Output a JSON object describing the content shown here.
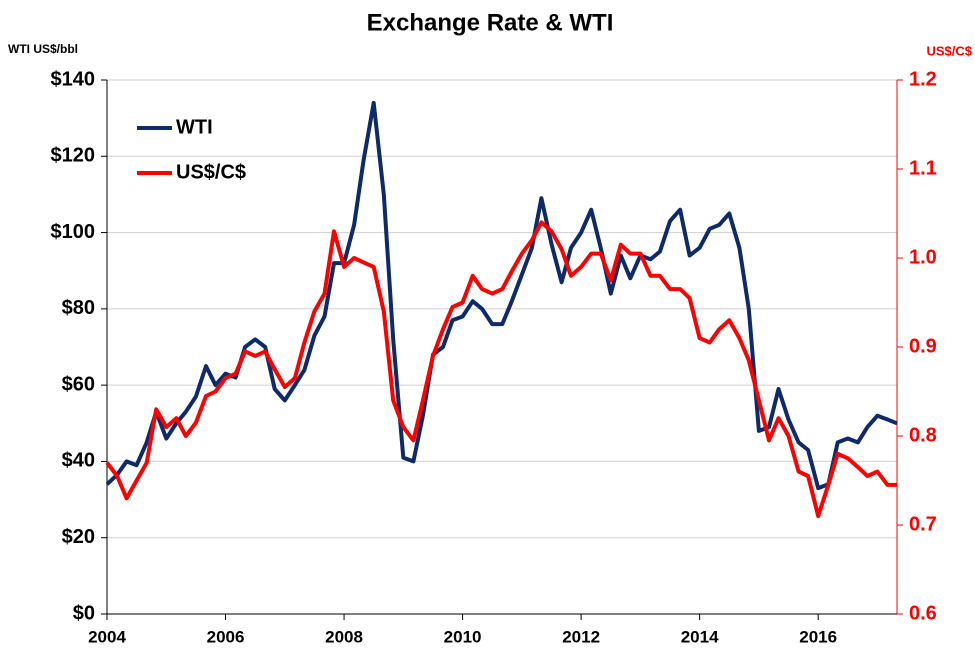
{
  "chart_data": {
    "type": "line",
    "title": "Exchange Rate & WTI",
    "y_label": "WTI US$/bbl",
    "y2_label": "US$/C$",
    "x": [
      2004,
      2004.17,
      2004.33,
      2004.5,
      2004.67,
      2004.83,
      2005,
      2005.17,
      2005.33,
      2005.5,
      2005.67,
      2005.83,
      2006,
      2006.17,
      2006.33,
      2006.5,
      2006.67,
      2006.83,
      2007,
      2007.17,
      2007.33,
      2007.5,
      2007.67,
      2007.83,
      2008,
      2008.17,
      2008.33,
      2008.5,
      2008.67,
      2008.83,
      2009,
      2009.17,
      2009.33,
      2009.5,
      2009.67,
      2009.83,
      2010,
      2010.17,
      2010.33,
      2010.5,
      2010.67,
      2010.83,
      2011,
      2011.17,
      2011.33,
      2011.5,
      2011.67,
      2011.83,
      2012,
      2012.17,
      2012.33,
      2012.5,
      2012.67,
      2012.83,
      2013,
      2013.17,
      2013.33,
      2013.5,
      2013.67,
      2013.83,
      2014,
      2014.17,
      2014.33,
      2014.5,
      2014.67,
      2014.83,
      2015,
      2015.17,
      2015.33,
      2015.5,
      2015.67,
      2015.83,
      2016,
      2016.17,
      2016.33,
      2016.5,
      2016.67,
      2016.83,
      2017,
      2017.17,
      2017.33
    ],
    "series": [
      {
        "name": "WTI",
        "color": "#0f2a6b",
        "values": [
          34,
          36.5,
          40,
          39,
          45,
          53,
          46,
          50,
          53,
          57,
          65,
          60,
          63,
          62,
          70,
          72,
          70,
          59,
          56,
          60,
          64,
          73,
          78,
          92,
          92,
          102,
          119,
          134,
          110,
          72,
          41,
          40,
          52,
          68,
          70,
          77,
          78,
          82,
          80,
          76,
          76,
          82,
          89,
          96,
          109,
          97,
          87,
          96,
          100,
          106,
          96,
          84,
          94,
          88,
          94,
          93,
          95,
          103,
          106,
          94,
          96,
          101,
          102,
          105,
          96,
          80,
          48,
          49,
          59,
          51,
          45,
          43,
          33,
          34,
          45,
          46,
          45,
          49,
          52,
          51,
          50
        ]
      },
      {
        "name": "US$/C$",
        "color": "#ff0000",
        "axis": "y2",
        "values": [
          0.77,
          0.755,
          0.73,
          0.75,
          0.77,
          0.83,
          0.81,
          0.82,
          0.8,
          0.815,
          0.845,
          0.85,
          0.865,
          0.87,
          0.895,
          0.89,
          0.895,
          0.875,
          0.855,
          0.865,
          0.905,
          0.94,
          0.96,
          1.03,
          0.99,
          1.0,
          0.995,
          0.99,
          0.94,
          0.84,
          0.81,
          0.795,
          0.84,
          0.89,
          0.92,
          0.945,
          0.95,
          0.98,
          0.965,
          0.96,
          0.965,
          0.985,
          1.005,
          1.02,
          1.04,
          1.03,
          1.01,
          0.98,
          0.99,
          1.005,
          1.005,
          0.975,
          1.015,
          1.005,
          1.005,
          0.98,
          0.98,
          0.965,
          0.965,
          0.955,
          0.91,
          0.905,
          0.92,
          0.93,
          0.91,
          0.885,
          0.84,
          0.795,
          0.82,
          0.8,
          0.76,
          0.755,
          0.71,
          0.745,
          0.78,
          0.775,
          0.765,
          0.755,
          0.76,
          0.745,
          0.745
        ]
      }
    ],
    "xlim": [
      2004,
      2017.33
    ],
    "xticks": [
      2004,
      2006,
      2008,
      2010,
      2012,
      2014,
      2016
    ],
    "ylim": [
      0,
      140
    ],
    "yticks": [
      {
        "value": 0,
        "label": "$0"
      },
      {
        "value": 20,
        "label": "$20"
      },
      {
        "value": 40,
        "label": "$40"
      },
      {
        "value": 60,
        "label": "$60"
      },
      {
        "value": 80,
        "label": "$80"
      },
      {
        "value": 100,
        "label": "$100"
      },
      {
        "value": 120,
        "label": "$120"
      },
      {
        "value": 140,
        "label": "$140"
      }
    ],
    "y2lim": [
      0.6,
      1.2
    ],
    "y2ticks": [
      0.6,
      0.7,
      0.8,
      0.9,
      {
        "value": 1,
        "label": "1.0"
      },
      1.1,
      1.2
    ],
    "grid": true,
    "legend": "upper left"
  }
}
